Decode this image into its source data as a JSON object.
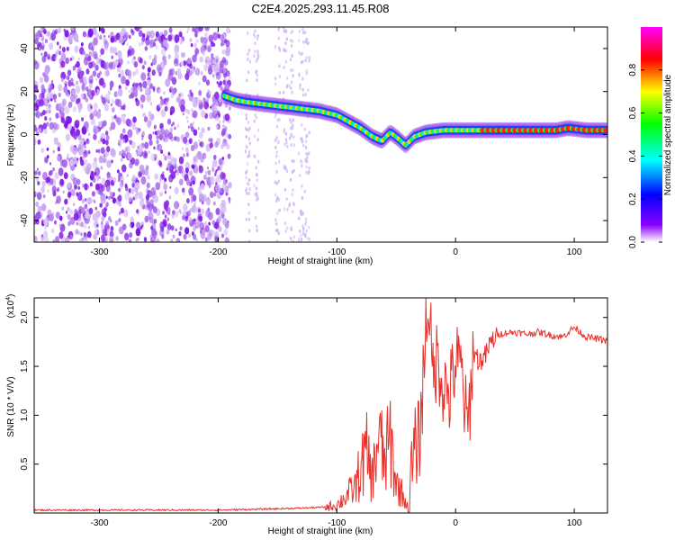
{
  "title": "C2E4.2025.293.11.45.R08",
  "chart_data": [
    {
      "type": "heatmap",
      "xlabel": "Height of straight line (km)",
      "ylabel": "Frequency (Hz)",
      "xlim": [
        -355,
        128
      ],
      "ylim": [
        -50,
        50
      ],
      "xticks": [
        -300,
        -200,
        -100,
        0,
        100
      ],
      "yticks": [
        -40,
        -20,
        0,
        20,
        40
      ],
      "grid": false,
      "colorbar": {
        "label": "Normalized spectral amplitude",
        "range": [
          0,
          1
        ],
        "ticks": [
          "0.0",
          "0.2",
          "0.4",
          "0.6",
          "0.8"
        ],
        "colors": [
          "#ffffff",
          "#8b00ff",
          "#0000ff",
          "#00ffff",
          "#00ff00",
          "#ffff00",
          "#ff0000",
          "#ff00ff"
        ]
      },
      "ridge": {
        "x": [
          -195,
          -185,
          -175,
          -160,
          -145,
          -130,
          -115,
          -100,
          -90,
          -80,
          -70,
          -62,
          -55,
          -48,
          -42,
          -35,
          -25,
          -10,
          0,
          20,
          40,
          60,
          85,
          95,
          110,
          128
        ],
        "y": [
          18,
          16,
          15,
          14,
          13,
          12,
          11,
          9,
          6,
          3,
          -1,
          -3,
          1,
          -2,
          -5,
          -1,
          1,
          2,
          2,
          2,
          2,
          2,
          2,
          3,
          2,
          2
        ]
      }
    },
    {
      "type": "line",
      "xlabel": "Height of straight line (km)",
      "ylabel": "SNR (10 * V/V)",
      "yscale_label": "(x10",
      "yscale_exp": "4",
      "xlim": [
        -355,
        128
      ],
      "ylim": [
        0,
        2.2
      ],
      "xticks": [
        -300,
        -200,
        -100,
        0,
        100
      ],
      "yticks": [
        "0.5",
        "1.0",
        "1.5",
        "2.0"
      ],
      "grid": false,
      "series": [
        {
          "color": "#e8302a",
          "x": [
            -355,
            -300,
            -250,
            -200,
            -160,
            -130,
            -110,
            -100,
            -90,
            -85,
            -80,
            -75,
            -70,
            -65,
            -60,
            -55,
            -50,
            -45,
            -40,
            -35,
            -30,
            -25,
            -22,
            -20,
            -15,
            -10,
            -5,
            0,
            5,
            10,
            15,
            20,
            25,
            30,
            35,
            40,
            50,
            60,
            70,
            80,
            90,
            100,
            110,
            120,
            128
          ],
          "y": [
            0.03,
            0.03,
            0.03,
            0.03,
            0.04,
            0.05,
            0.06,
            0.08,
            0.2,
            0.25,
            0.45,
            0.6,
            0.35,
            0.8,
            0.5,
            0.75,
            0.3,
            0.2,
            0.05,
            0.6,
            0.8,
            1.9,
            2.2,
            1.4,
            1.6,
            1.3,
            1.2,
            1.55,
            1.45,
            0.8,
            1.65,
            1.55,
            1.6,
            1.75,
            1.82,
            1.84,
            1.85,
            1.83,
            1.85,
            1.82,
            1.8,
            1.9,
            1.8,
            1.78,
            1.76
          ]
        }
      ]
    }
  ]
}
